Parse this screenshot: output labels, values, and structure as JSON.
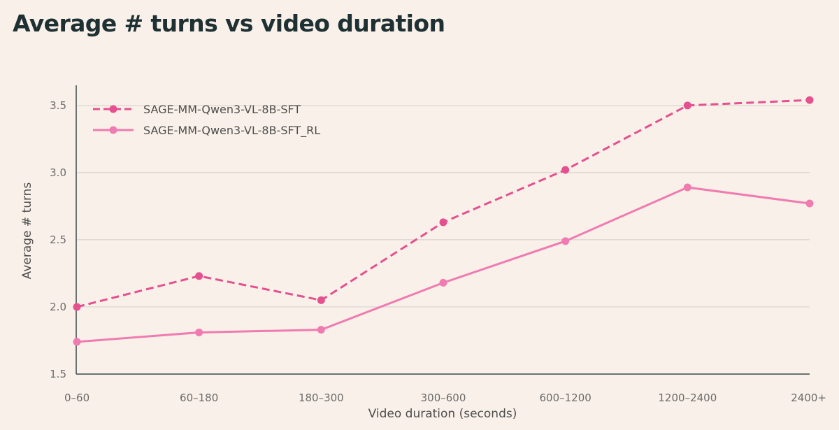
{
  "chart_data": {
    "type": "line",
    "title": "Average # turns vs video duration",
    "xlabel": "Video duration (seconds)",
    "ylabel": "Average # turns",
    "categories": [
      "0–60",
      "60–180",
      "180–300",
      "300–600",
      "600–1200",
      "1200–2400",
      "2400+"
    ],
    "ylim": [
      1.5,
      3.65
    ],
    "yticks": [
      "1.5",
      "2.0",
      "2.5",
      "3.0",
      "3.5"
    ],
    "grid": true,
    "legend_position": "top-left",
    "series": [
      {
        "name": "SAGE-MM-Qwen3-VL-8B-SFT",
        "values": [
          2.0,
          2.23,
          2.05,
          2.63,
          3.02,
          3.5,
          3.54
        ],
        "color": "#e5508f",
        "style": "dashed"
      },
      {
        "name": "SAGE-MM-Qwen3-VL-8B-SFT_RL",
        "values": [
          1.74,
          1.81,
          1.83,
          2.18,
          2.49,
          2.89,
          2.77
        ],
        "color": "#f07bb0",
        "style": "solid"
      }
    ]
  }
}
